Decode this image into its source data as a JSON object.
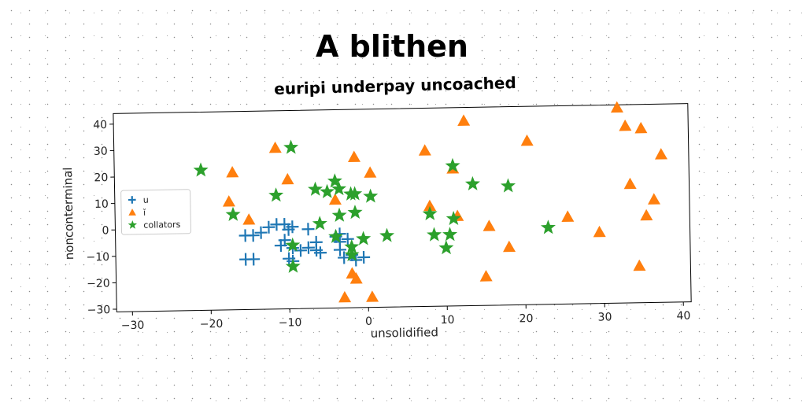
{
  "chart_data": {
    "type": "scatter",
    "title": "A blithen",
    "subtitle": "euripi underpay uncoached",
    "xlabel": "unsolidified",
    "ylabel": "nonconterminal",
    "xlim": [
      -32,
      41
    ],
    "ylim": [
      -31,
      44
    ],
    "xticks": [
      -30,
      -20,
      -10,
      0,
      10,
      20,
      30,
      40
    ],
    "yticks": [
      -30,
      -20,
      -10,
      0,
      10,
      20,
      30,
      40
    ],
    "tick_labels_x": [
      "−30",
      "−20",
      "−10",
      "0",
      "10",
      "20",
      "30",
      "40"
    ],
    "tick_labels_y": [
      "−30",
      "−20",
      "−10",
      "0",
      "10",
      "20",
      "30",
      "40"
    ],
    "grid": false,
    "legend_position": "center-left",
    "series": [
      {
        "name": "u",
        "marker": "plus",
        "color": "#1f77b4",
        "points": [
          [
            -15.5,
            -3
          ],
          [
            -14.5,
            -3
          ],
          [
            -15.5,
            -12
          ],
          [
            -14.5,
            -12
          ],
          [
            -13.5,
            -2
          ],
          [
            -12.5,
            0
          ],
          [
            -11.5,
            1
          ],
          [
            -10.5,
            1
          ],
          [
            -10,
            -1
          ],
          [
            -9.5,
            0
          ],
          [
            -11,
            -7
          ],
          [
            -10.5,
            -5
          ],
          [
            -9.5,
            -8
          ],
          [
            -8.5,
            -9
          ],
          [
            -7.5,
            -8
          ],
          [
            -6.5,
            -9
          ],
          [
            -6,
            -10
          ],
          [
            -6.5,
            -6
          ],
          [
            -7.5,
            -1
          ],
          [
            -10,
            -12
          ],
          [
            -9.5,
            -13
          ],
          [
            -4,
            -4
          ],
          [
            -3.5,
            -6
          ],
          [
            -3.5,
            -3
          ],
          [
            -3,
            -12
          ],
          [
            -3.5,
            -9
          ],
          [
            -2,
            -11
          ],
          [
            -1.5,
            -13
          ],
          [
            -0.5,
            -12
          ],
          [
            -2.5,
            -5
          ]
        ]
      },
      {
        "name": "ĭ",
        "marker": "triangle",
        "color": "#ff7f0e",
        "points": [
          [
            -17.5,
            10
          ],
          [
            -17,
            21
          ],
          [
            -15,
            3
          ],
          [
            -11.5,
            30
          ],
          [
            -10,
            18
          ],
          [
            -4,
            10
          ],
          [
            -1.5,
            26
          ],
          [
            0.5,
            20
          ],
          [
            -2,
            -18
          ],
          [
            -1.5,
            -20
          ],
          [
            -3,
            -27
          ],
          [
            0.5,
            -27
          ],
          [
            7.5,
            28
          ],
          [
            8,
            7
          ],
          [
            11,
            21
          ],
          [
            11.5,
            3
          ],
          [
            12.5,
            39
          ],
          [
            15,
            -20
          ],
          [
            15.5,
            -1
          ],
          [
            18,
            -9
          ],
          [
            20.5,
            31
          ],
          [
            25.5,
            2
          ],
          [
            29.5,
            -4
          ],
          [
            32,
            43
          ],
          [
            33,
            36
          ],
          [
            33.5,
            14
          ],
          [
            35,
            35
          ],
          [
            35.5,
            2
          ],
          [
            36.5,
            8
          ],
          [
            37.5,
            25
          ],
          [
            34.5,
            -17
          ]
        ]
      },
      {
        "name": "collators",
        "marker": "star",
        "color": "#2ca02c",
        "points": [
          [
            -21,
            22
          ],
          [
            -17,
            5
          ],
          [
            -11.5,
            12
          ],
          [
            -9.5,
            30
          ],
          [
            -6.5,
            14
          ],
          [
            -5,
            13
          ],
          [
            -4,
            17
          ],
          [
            -3.5,
            14
          ],
          [
            -1.5,
            12
          ],
          [
            0.5,
            11
          ],
          [
            -6,
            1
          ],
          [
            -3.5,
            4
          ],
          [
            -1.5,
            5
          ],
          [
            -9.5,
            -7
          ],
          [
            -9.5,
            -15
          ],
          [
            -4,
            -4
          ],
          [
            -2,
            -8
          ],
          [
            -0.5,
            -5
          ],
          [
            2.5,
            -4
          ],
          [
            -2,
            -11
          ],
          [
            8,
            4
          ],
          [
            8.5,
            -4
          ],
          [
            10.5,
            -4
          ],
          [
            10,
            -9
          ],
          [
            11,
            2
          ],
          [
            11,
            22
          ],
          [
            13.5,
            15
          ],
          [
            18,
            14
          ],
          [
            23,
            -2
          ],
          [
            -2,
            12
          ]
        ]
      }
    ]
  }
}
